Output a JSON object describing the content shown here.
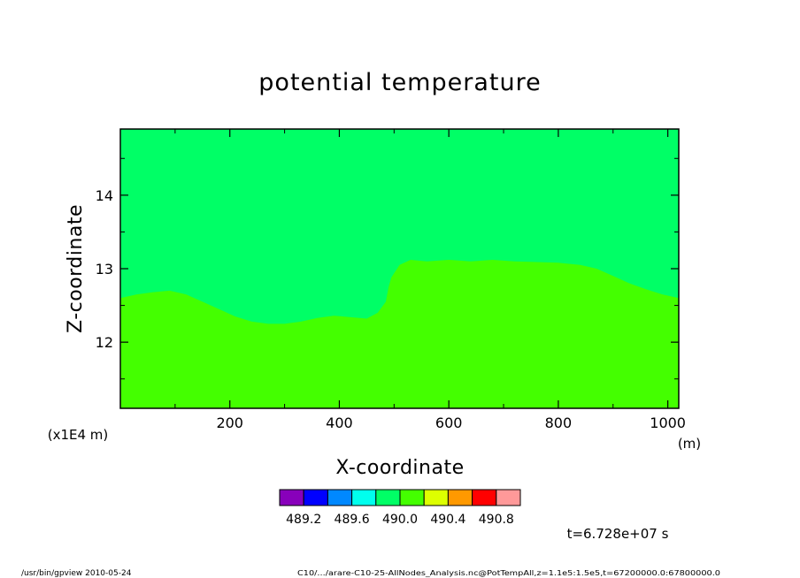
{
  "chart_data": {
    "type": "heatmap",
    "title": "potential temperature",
    "xlabel": "X-coordinate",
    "ylabel": "Z-coordinate",
    "x_unit": "(m)",
    "y_scale_note": "(x1E4 m)",
    "xlim": [
      0,
      1020
    ],
    "ylim": [
      11.1,
      14.9
    ],
    "x_ticks": [
      {
        "value": 200,
        "label": "200"
      },
      {
        "value": 400,
        "label": "400"
      },
      {
        "value": 600,
        "label": "600"
      },
      {
        "value": 800,
        "label": "800"
      },
      {
        "value": 1000,
        "label": "1000"
      }
    ],
    "y_ticks": [
      {
        "value": 12,
        "label": "12"
      },
      {
        "value": 13,
        "label": "13"
      },
      {
        "value": 14,
        "label": "14"
      }
    ],
    "regions": [
      {
        "level": "above 490.0",
        "color": "#00ff66",
        "location": "upper layer"
      },
      {
        "level": "490.0 - 490.2",
        "color": "#44ff00",
        "location": "lower layer"
      }
    ],
    "interface": {
      "x": [
        0,
        30,
        60,
        90,
        120,
        150,
        180,
        210,
        240,
        270,
        300,
        330,
        360,
        390,
        420,
        450,
        470,
        485,
        490,
        495,
        510,
        530,
        560,
        600,
        640,
        680,
        720,
        760,
        800,
        840,
        870,
        900,
        930,
        960,
        990,
        1020
      ],
      "z": [
        12.6,
        12.65,
        12.68,
        12.7,
        12.65,
        12.55,
        12.45,
        12.35,
        12.28,
        12.25,
        12.25,
        12.28,
        12.33,
        12.36,
        12.34,
        12.32,
        12.4,
        12.55,
        12.75,
        12.88,
        13.05,
        13.12,
        13.1,
        13.12,
        13.1,
        13.12,
        13.1,
        13.09,
        13.08,
        13.05,
        13.0,
        12.9,
        12.8,
        12.72,
        12.65,
        12.6
      ]
    },
    "colorbar": {
      "colors": [
        "#8800bb",
        "#0000ff",
        "#0088ff",
        "#00ffee",
        "#00ff66",
        "#44ff00",
        "#ddff00",
        "#ff9900",
        "#ff0000",
        "#ff9999"
      ],
      "labels": [
        "489.2",
        "489.6",
        "490.0",
        "490.4",
        "490.8"
      ]
    }
  },
  "annotations": {
    "time": "t=6.728e+07 s",
    "footer_left": "/usr/bin/gpview   2010-05-24",
    "footer_right": "C10/.../arare-C10-25-AllNodes_Analysis.nc@PotTempAll,z=1.1e5:1.5e5,t=67200000.0:67800000.0"
  }
}
